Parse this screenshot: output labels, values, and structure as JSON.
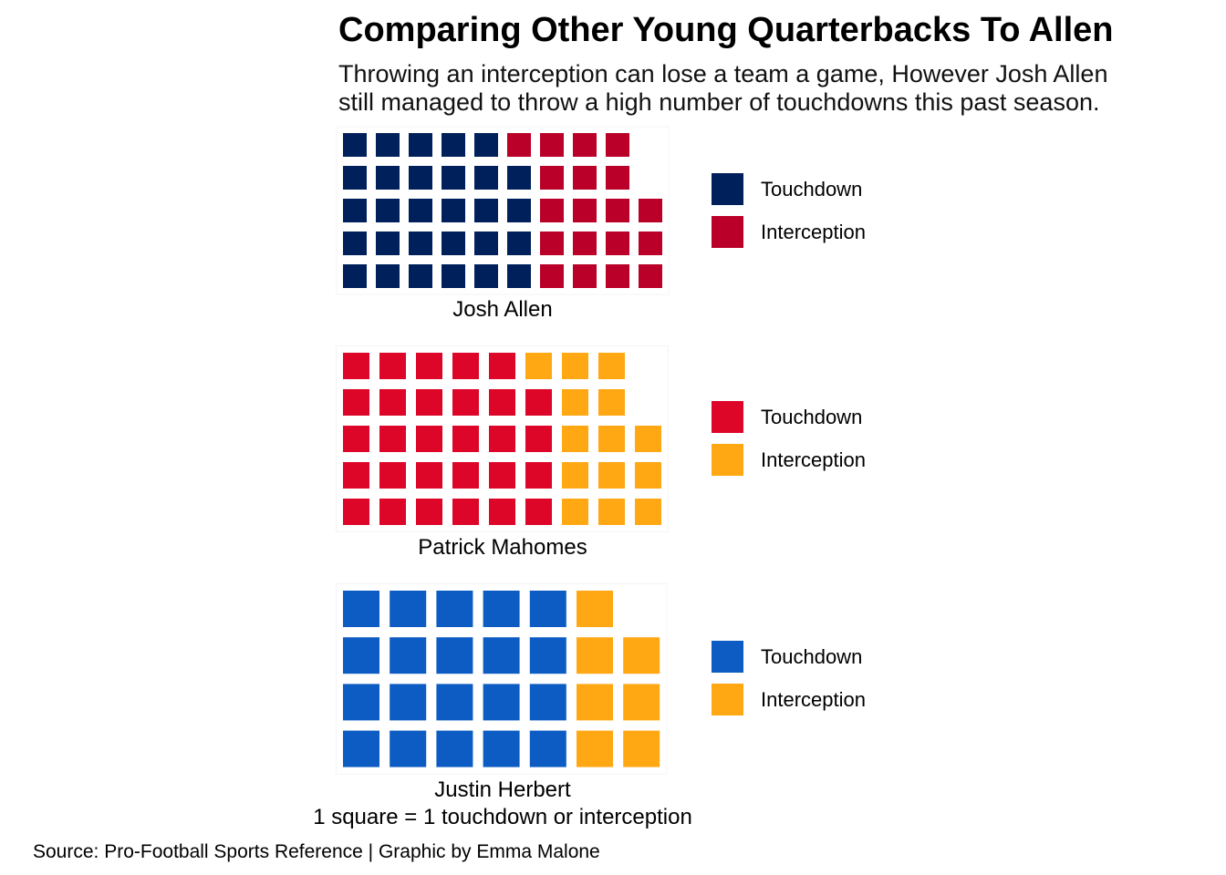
{
  "chart_data": {
    "type": "waffle",
    "title": "Comparing Other Young Quarterbacks To Allen",
    "subtitle": [
      "Throwing an interception can lose a team a game, However Josh Allen",
      "still managed to throw a high number of touchdowns this past season."
    ],
    "note": "1 square = 1 touchdown or interception",
    "caption": "Source: Pro-Football Sports Reference | Graphic by Emma Malone",
    "panels": [
      {
        "player": "Josh Allen",
        "rows": 5,
        "series": [
          {
            "name": "Touchdown",
            "value": 29,
            "color": "#00205B"
          },
          {
            "name": "Interception",
            "value": 19,
            "color": "#BA0028"
          }
        ]
      },
      {
        "player": "Patrick Mahomes",
        "rows": 5,
        "series": [
          {
            "name": "Touchdown",
            "value": 29,
            "color": "#DD0528"
          },
          {
            "name": "Interception",
            "value": 14,
            "color": "#FFA814"
          }
        ]
      },
      {
        "player": "Justin Herbert",
        "rows": 4,
        "series": [
          {
            "name": "Touchdown",
            "value": 20,
            "color": "#0C5CC4"
          },
          {
            "name": "Interception",
            "value": 7,
            "color": "#FFA814"
          }
        ]
      }
    ]
  }
}
